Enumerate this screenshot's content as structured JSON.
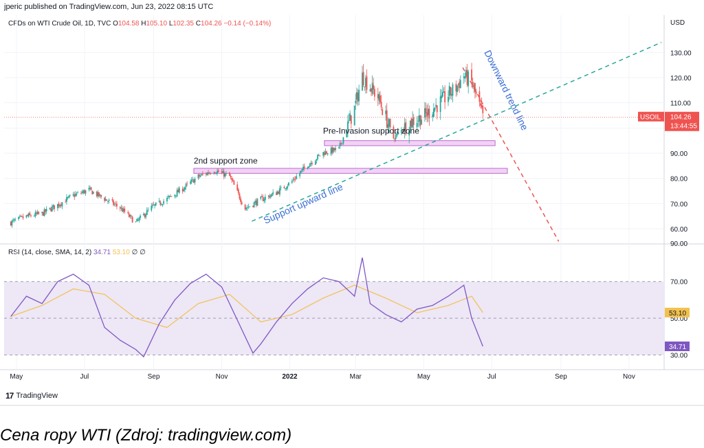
{
  "publisher_line": "jperic published on TradingView.com, Jun 23, 2022 08:15 UTC",
  "price_header": {
    "symbol": "CFDs on WTI Crude Oil, 1D, TVC",
    "o_label": "O",
    "o": "104.58",
    "h_label": "H",
    "h": "105.10",
    "l_label": "L",
    "l": "102.35",
    "c_label": "C",
    "c": "104.26",
    "change": "−0.14 (−0.14%)"
  },
  "rsi_header": {
    "label": "RSI (14, close, SMA, 14, 2)",
    "rsi": "34.71",
    "sma": "53.10",
    "extra": "∅  ∅"
  },
  "currency": "USD",
  "brand": "TradingView",
  "caption": "Cena ropy WTI (Zdroj: tradingview.com)",
  "colors": {
    "up": "#26a69a",
    "down": "#ef5350",
    "trend_up": "#26a69a",
    "trend_down": "#ef5350",
    "zone_fill": "#f1d3f4",
    "zone_stroke": "#c06ad0",
    "rsi_line": "#7e57c2",
    "rsi_sma": "#f2c14e",
    "rsi_band": "#ede7f6",
    "price_tag": "#ef5350",
    "annotation_blue": "#3c6fd6"
  },
  "chart_data": [
    {
      "type": "line",
      "title": "CFDs on WTI Crude Oil, 1D, TVC",
      "xlabel": "",
      "ylabel": "USD",
      "x_tick_labels": [
        "May",
        "Jul",
        "Sep",
        "Nov",
        "2022",
        "Mar",
        "May",
        "Jul",
        "Sep",
        "Nov"
      ],
      "x_tick_dates": [
        "2021-05-01",
        "2021-07-01",
        "2021-09-01",
        "2021-11-01",
        "2022-01-01",
        "2022-03-01",
        "2022-05-01",
        "2022-07-01",
        "2022-09-01",
        "2022-11-01"
      ],
      "y_ticks": [
        60.0,
        70.0,
        80.0,
        90.0,
        100.0,
        110.0,
        120.0,
        130.0
      ],
      "y_tick_labels": [
        "60.00",
        "70.00",
        "80.00",
        "90.00",
        "100.00",
        "110.00",
        "120.00",
        "130.00"
      ],
      "y_hidden_label": "90.00",
      "ylim": [
        54,
        138
      ],
      "series": [
        {
          "style": "candlestick",
          "x": [
            "2021-04-26",
            "2021-05-10",
            "2021-05-24",
            "2021-06-07",
            "2021-06-21",
            "2021-07-05",
            "2021-07-19",
            "2021-08-02",
            "2021-08-16",
            "2021-08-30",
            "2021-09-13",
            "2021-09-27",
            "2021-10-11",
            "2021-10-25",
            "2021-11-08",
            "2021-11-22",
            "2021-12-06",
            "2021-12-20",
            "2022-01-03",
            "2022-01-17",
            "2022-01-31",
            "2022-02-14",
            "2022-02-28",
            "2022-03-07",
            "2022-03-21",
            "2022-04-04",
            "2022-04-18",
            "2022-05-02",
            "2022-05-16",
            "2022-05-30",
            "2022-06-06",
            "2022-06-13",
            "2022-06-23"
          ],
          "values": [
            62.5,
            64.9,
            66.0,
            69.5,
            73.2,
            75.4,
            71.9,
            68.3,
            62.4,
            68.4,
            71.8,
            75.9,
            80.7,
            83.2,
            80.8,
            68.1,
            71.6,
            74.3,
            78.9,
            85.4,
            90.2,
            91.7,
            107.8,
            120.5,
            112.3,
            96.0,
            102.1,
            104.9,
            110.3,
            116.1,
            120.9,
            118.1,
            104.26
          ]
        }
      ],
      "zones": [
        {
          "label": "2nd support zone",
          "from_date": "2021-10-07",
          "to_date": "2022-07-15",
          "y_low": 82.0,
          "y_high": 84.0
        },
        {
          "label": "Pre-Invasion support zone",
          "from_date": "2022-02-01",
          "to_date": "2022-07-04",
          "y_low": 93.0,
          "y_high": 95.0
        }
      ],
      "trendlines": [
        {
          "label": "Support upward line",
          "from_date": "2021-11-28",
          "from_y": 63.0,
          "to_date": "2022-11-30",
          "to_y": 134.0,
          "color": "#26a69a"
        },
        {
          "label": "Downward trend line",
          "from_date": "2022-06-05",
          "from_y": 124.0,
          "to_date": "2022-08-30",
          "to_y": 55.0,
          "color": "#ef5350"
        }
      ],
      "last_price": {
        "symbol": "USOIL",
        "value": "104.26",
        "countdown": "13:44:55"
      }
    },
    {
      "type": "line",
      "title": "RSI (14, close, SMA, 14, 2)",
      "xlabel": "",
      "ylabel": "",
      "y_ticks": [
        30.0,
        50.0,
        70.0
      ],
      "y_tick_labels": [
        "30.00",
        "50.00",
        "70.00"
      ],
      "ylim": [
        22,
        83
      ],
      "band": [
        30,
        70
      ],
      "series": [
        {
          "name": "RSI",
          "x": [
            "2021-04-26",
            "2021-05-10",
            "2021-05-24",
            "2021-06-07",
            "2021-06-21",
            "2021-07-05",
            "2021-07-19",
            "2021-08-02",
            "2021-08-16",
            "2021-08-23",
            "2021-09-06",
            "2021-09-20",
            "2021-10-04",
            "2021-10-18",
            "2021-11-01",
            "2021-11-15",
            "2021-11-29",
            "2021-12-06",
            "2021-12-20",
            "2022-01-03",
            "2022-01-17",
            "2022-01-31",
            "2022-02-14",
            "2022-02-28",
            "2022-03-07",
            "2022-03-14",
            "2022-03-28",
            "2022-04-11",
            "2022-04-25",
            "2022-05-09",
            "2022-05-23",
            "2022-06-06",
            "2022-06-13",
            "2022-06-23"
          ],
          "values": [
            51,
            62,
            58,
            70,
            74,
            68,
            45,
            38,
            33,
            29,
            47,
            60,
            69,
            74,
            67,
            49,
            31,
            36,
            48,
            58,
            66,
            72,
            70,
            62,
            83,
            58,
            52,
            48,
            55,
            57,
            62,
            68,
            50,
            34.71
          ]
        },
        {
          "name": "SMA",
          "x": [
            "2021-04-26",
            "2021-05-24",
            "2021-06-21",
            "2021-07-19",
            "2021-08-16",
            "2021-09-13",
            "2021-10-11",
            "2021-11-08",
            "2021-12-06",
            "2022-01-03",
            "2022-01-31",
            "2022-02-28",
            "2022-03-28",
            "2022-04-25",
            "2022-05-23",
            "2022-06-13",
            "2022-06-23"
          ],
          "values": [
            51,
            57,
            66,
            63,
            50,
            45,
            58,
            63,
            48,
            52,
            61,
            68,
            61,
            53,
            57,
            62,
            53.1
          ]
        }
      ]
    }
  ]
}
